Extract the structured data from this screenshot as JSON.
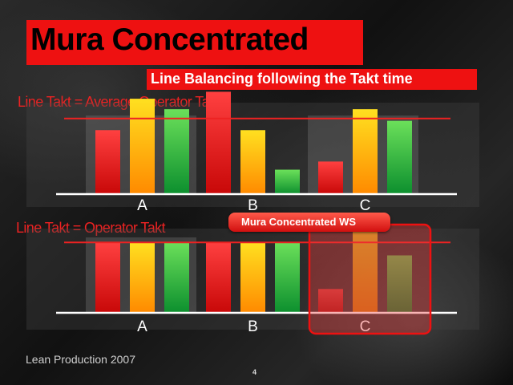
{
  "title": "Mura Concentrated",
  "subtitle": "Line Balancing following the Takt time",
  "footer": "Lean Production 2007",
  "page_number": "4",
  "colors": {
    "red": "#ee1111",
    "orange": "#ffb000",
    "green": "#17a83a",
    "takt_line": "#ee2222"
  },
  "chart_data": [
    {
      "type": "bar",
      "title": "Line Takt = Average Operator Takt",
      "categories": [
        "A",
        "B",
        "C"
      ],
      "operators_per_group": 3,
      "values": [
        [
          55,
          82,
          73
        ],
        [
          88,
          55,
          21
        ],
        [
          28,
          73,
          63
        ]
      ],
      "takt_line": 65,
      "ylim": [
        0,
        100
      ]
    },
    {
      "type": "bar",
      "title": "Line Takt = Operator Takt",
      "categories": [
        "A",
        "B",
        "C"
      ],
      "operators_per_group": 3,
      "values": [
        [
          65,
          65,
          65
        ],
        [
          65,
          65,
          65
        ],
        [
          22,
          82,
          53
        ]
      ],
      "takt_line": 65,
      "ylim": [
        0,
        100
      ],
      "highlight": {
        "category": "C",
        "label": "Mura Concentrated WS"
      }
    }
  ]
}
